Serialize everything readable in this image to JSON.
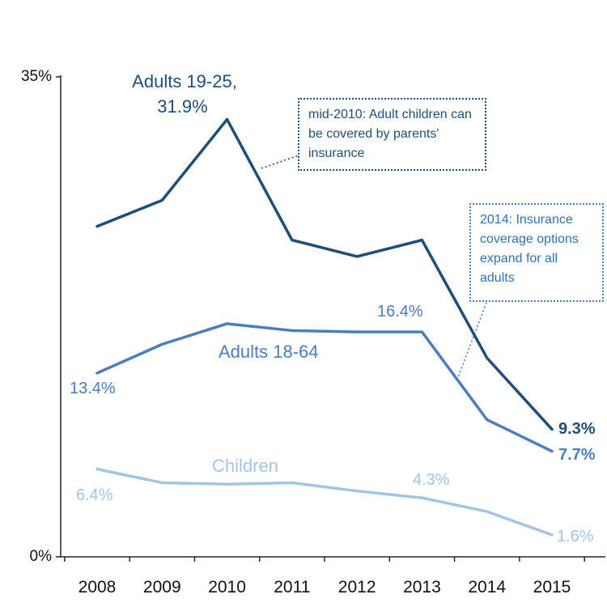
{
  "chart_data": {
    "type": "line",
    "title": "",
    "categories": [
      "2008",
      "2009",
      "2010",
      "2011",
      "2012",
      "2013",
      "2014",
      "2015"
    ],
    "xlabel": "",
    "ylabel": "",
    "ylim": [
      0,
      35
    ],
    "y_axis_tick_labels": {
      "max": "35%",
      "min": "0%"
    },
    "grid": false,
    "legend_position": "inline-labels",
    "series": [
      {
        "id": "adults-19-25",
        "name": "Adults 19-25",
        "color": "#1f4e79",
        "values": [
          24.1,
          26.0,
          31.9,
          23.1,
          21.9,
          23.1,
          14.5,
          9.3
        ]
      },
      {
        "id": "adults-18-64",
        "name": "Adults 18-64",
        "color": "#4a7ebf",
        "values": [
          13.4,
          15.5,
          17.0,
          16.5,
          16.4,
          16.4,
          10.0,
          7.7
        ]
      },
      {
        "id": "children",
        "name": "Children",
        "color": "#a3c4e4",
        "values": [
          6.4,
          5.4,
          5.3,
          5.4,
          4.8,
          4.3,
          3.3,
          1.6
        ]
      }
    ],
    "annotations": [
      {
        "id": "mid-2010",
        "text": "mid-2010: Adult children can be covered by parents' insurance"
      },
      {
        "id": "2014",
        "text": "2014: Insurance coverage options expand for all adults"
      }
    ],
    "labels": {
      "adults1925_series_line1": "Adults 19-25,",
      "adults1925_series_line2": "31.9%",
      "adults1864_series": "Adults 18-64",
      "children_series": "Children",
      "adults1864_2008": "13.4%",
      "adults1864_2013": "16.4%",
      "adults1925_2015": "9.3%",
      "adults1864_2015": "7.7%",
      "children_2008": "6.4%",
      "children_2013": "4.3%",
      "children_2015": "1.6%"
    },
    "colors": {
      "dark_blue": "#1f4e79",
      "medium_blue": "#4a7ebf",
      "light_blue": "#a3c4e4",
      "axis": "#262626"
    }
  }
}
